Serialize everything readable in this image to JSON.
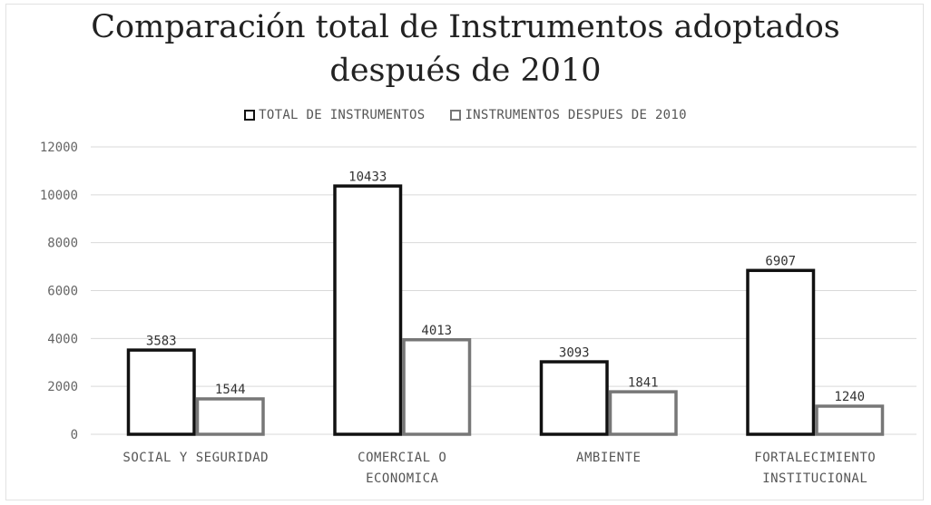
{
  "chart_data": {
    "type": "bar",
    "title_lines": [
      "Comparación total de Instrumentos adoptados",
      "después de 2010"
    ],
    "categories": [
      [
        "SOCIAL Y SEGURIDAD"
      ],
      [
        "COMERCIAL O",
        "ECONOMICA"
      ],
      [
        "AMBIENTE"
      ],
      [
        "FORTALECIMIENTO",
        "INSTITUCIONAL"
      ]
    ],
    "series": [
      {
        "name": "TOTAL DE INSTRUMENTOS",
        "values": [
          3583,
          10433,
          3093,
          6907
        ],
        "color": "#111111"
      },
      {
        "name": "INSTRUMENTOS DESPUES DE 2010",
        "values": [
          1544,
          4013,
          1841,
          1240
        ],
        "color": "#777777"
      }
    ],
    "ylim": [
      0,
      12000
    ],
    "yticks": [
      0,
      2000,
      4000,
      6000,
      8000,
      10000,
      12000
    ],
    "grid": true,
    "legend_position": "top"
  }
}
